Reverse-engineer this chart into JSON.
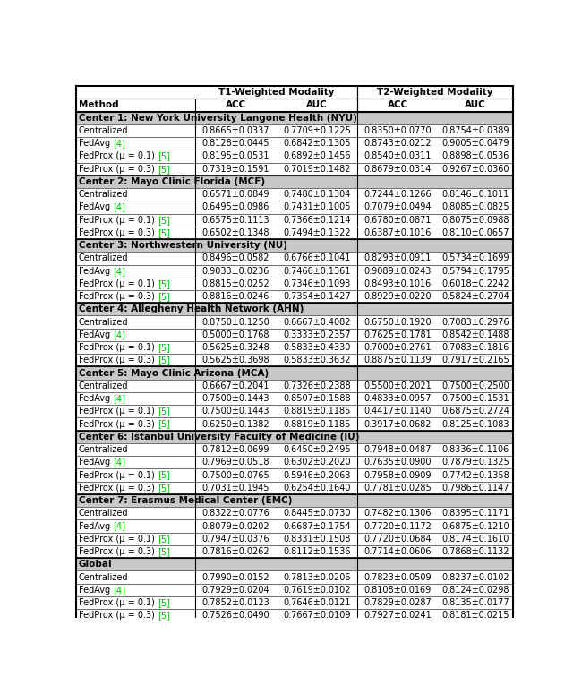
{
  "sections": [
    {
      "title": "Center 1: New York University Langone Health (NYU)",
      "rows": [
        [
          "Centralized",
          "0.8665±0.0337",
          "0.7709±0.1225",
          "0.8350±0.0770",
          "0.8754±0.0389"
        ],
        [
          "FedAvg [4]",
          "0.8128±0.0445",
          "0.6842±0.1305",
          "0.8743±0.0212",
          "0.9005±0.0479"
        ],
        [
          "FedProx (μ = 0.1) [5]",
          "0.8195±0.0531",
          "0.6892±0.1456",
          "0.8540±0.0311",
          "0.8898±0.0536"
        ],
        [
          "FedProx (μ = 0.3) [5]",
          "0.7319±0.1591",
          "0.7019±0.1482",
          "0.8679±0.0314",
          "0.9267±0.0360"
        ]
      ]
    },
    {
      "title": "Center 2: Mayo Clinic Florida (MCF)",
      "rows": [
        [
          "Centralized",
          "0.6571±0.0849",
          "0.7480±0.1304",
          "0.7244±0.1266",
          "0.8146±0.1011"
        ],
        [
          "FedAvg [4]",
          "0.6495±0.0986",
          "0.7431±0.1005",
          "0.7079±0.0494",
          "0.8085±0.0825"
        ],
        [
          "FedProx (μ = 0.1) [5]",
          "0.6575±0.1113",
          "0.7366±0.1214",
          "0.6780±0.0871",
          "0.8075±0.0988"
        ],
        [
          "FedProx (μ = 0.3) [5]",
          "0.6502±0.1348",
          "0.7494±0.1322",
          "0.6387±0.1016",
          "0.8110±0.0657"
        ]
      ]
    },
    {
      "title": "Center 3: Northwestern University (NU)",
      "rows": [
        [
          "Centralized",
          "0.8496±0.0582",
          "0.6766±0.1041",
          "0.8293±0.0911",
          "0.5734±0.1699"
        ],
        [
          "FedAvg [4]",
          "0.9033±0.0236",
          "0.7466±0.1361",
          "0.9089±0.0243",
          "0.5794±0.1795"
        ],
        [
          "FedProx (μ = 0.1) [5]",
          "0.8815±0.0252",
          "0.7346±0.1093",
          "0.8493±0.1016",
          "0.6018±0.2242"
        ],
        [
          "FedProx (μ = 0.3) [5]",
          "0.8816±0.0246",
          "0.7354±0.1427",
          "0.8929±0.0220",
          "0.5824±0.2704"
        ]
      ]
    },
    {
      "title": "Center 4: Allegheny Health Network (AHN)",
      "rows": [
        [
          "Centralized",
          "0.8750±0.1250",
          "0.6667±0.4082",
          "0.6750±0.1920",
          "0.7083±0.2976"
        ],
        [
          "FedAvg [4]",
          "0.5000±0.1768",
          "0.3333±0.2357",
          "0.7625±0.1781",
          "0.8542±0.1488"
        ],
        [
          "FedProx (μ = 0.1) [5]",
          "0.5625±0.3248",
          "0.5833±0.4330",
          "0.7000±0.2761",
          "0.7083±0.1816"
        ],
        [
          "FedProx (μ = 0.3) [5]",
          "0.5625±0.3698",
          "0.5833±0.3632",
          "0.8875±0.1139",
          "0.7917±0.2165"
        ]
      ]
    },
    {
      "title": "Center 5: Mayo Clinic Arizona (MCA)",
      "rows": [
        [
          "Centralized",
          "0.6667±0.2041",
          "0.7326±0.2388",
          "0.5500±0.2021",
          "0.7500±0.2500"
        ],
        [
          "FedAvg [4]",
          "0.7500±0.1443",
          "0.8507±0.1588",
          "0.4833±0.0957",
          "0.7500±0.1531"
        ],
        [
          "FedProx (μ = 0.1) [5]",
          "0.7500±0.1443",
          "0.8819±0.1185",
          "0.4417±0.1140",
          "0.6875±0.2724"
        ],
        [
          "FedProx (μ = 0.3) [5]",
          "0.6250±0.1382",
          "0.8819±0.1185",
          "0.3917±0.0682",
          "0.8125±0.1083"
        ]
      ]
    },
    {
      "title": "Center 6: Istanbul University Faculty of Medicine (IU)",
      "rows": [
        [
          "Centralized",
          "0.7812±0.0699",
          "0.6450±0.2495",
          "0.7948±0.0487",
          "0.8336±0.1106"
        ],
        [
          "FedAvg [4]",
          "0.7969±0.0518",
          "0.6302±0.2020",
          "0.7635±0.0900",
          "0.7879±0.1325"
        ],
        [
          "FedProx (μ = 0.1) [5]",
          "0.7500±0.0765",
          "0.5946±0.2063",
          "0.7958±0.0909",
          "0.7742±0.1358"
        ],
        [
          "FedProx (μ = 0.3) [5]",
          "0.7031±0.1945",
          "0.6254±0.1640",
          "0.7781±0.0285",
          "0.7986±0.1147"
        ]
      ]
    },
    {
      "title": "Center 7: Erasmus Medical Center (EMC)",
      "rows": [
        [
          "Centralized",
          "0.8322±0.0776",
          "0.8445±0.0730",
          "0.7482±0.1306",
          "0.8395±0.1171"
        ],
        [
          "FedAvg [4]",
          "0.8079±0.0202",
          "0.6687±0.1754",
          "0.7720±0.1172",
          "0.6875±0.1210"
        ],
        [
          "FedProx (μ = 0.1) [5]",
          "0.7947±0.0376",
          "0.8331±0.1508",
          "0.7720±0.0684",
          "0.8174±0.1610"
        ],
        [
          "FedProx (μ = 0.3) [5]",
          "0.7816±0.0262",
          "0.8112±0.1536",
          "0.7714±0.0606",
          "0.7868±0.1132"
        ]
      ]
    },
    {
      "title": "Global",
      "rows": [
        [
          "Centralized",
          "0.7990±0.0152",
          "0.7813±0.0206",
          "0.7823±0.0509",
          "0.8237±0.0102"
        ],
        [
          "FedAvg [4]",
          "0.7929±0.0204",
          "0.7619±0.0102",
          "0.8108±0.0169",
          "0.8124±0.0298"
        ],
        [
          "FedProx (μ = 0.1) [5]",
          "0.7852±0.0123",
          "0.7646±0.0121",
          "0.7829±0.0287",
          "0.8135±0.0177"
        ],
        [
          "FedProx (μ = 0.3) [5]",
          "0.7526±0.0490",
          "0.7667±0.0109",
          "0.7927±0.0241",
          "0.8181±0.0215"
        ]
      ]
    }
  ],
  "ref_color": "#00BB00",
  "section_bg": "#C8C8C8",
  "fig_width": 6.4,
  "fig_height": 7.75,
  "dpi": 100
}
